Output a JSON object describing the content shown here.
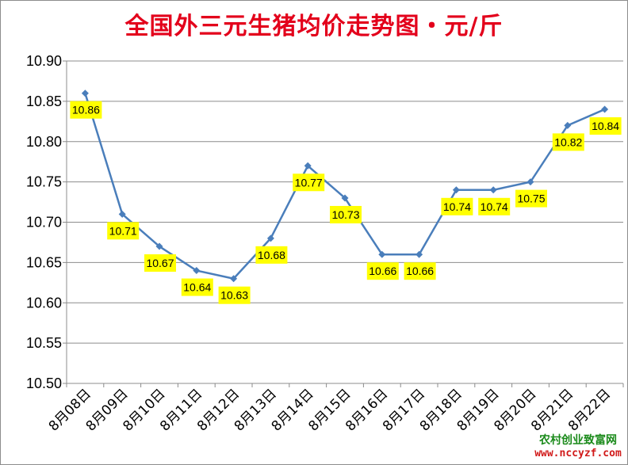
{
  "chart_data": {
    "type": "line",
    "title": "全国外三元生猪均价走势图・元/斤",
    "xlabel": "",
    "ylabel": "",
    "categories": [
      "8月08日",
      "8月09日",
      "8月10日",
      "8月11日",
      "8月12日",
      "8月13日",
      "8月14日",
      "8月15日",
      "8月16日",
      "8月17日",
      "8月18日",
      "8月19日",
      "8月20日",
      "8月21日",
      "8月22日"
    ],
    "series": [
      {
        "values": [
          10.86,
          10.71,
          10.67,
          10.64,
          10.63,
          10.68,
          10.77,
          10.73,
          10.66,
          10.66,
          10.74,
          10.74,
          10.75,
          10.82,
          10.84
        ]
      }
    ],
    "ylim": [
      10.5,
      10.9
    ],
    "yticks": [
      "10.50",
      "10.55",
      "10.60",
      "10.65",
      "10.70",
      "10.75",
      "10.80",
      "10.85",
      "10.90"
    ],
    "grid": true,
    "legend": "none",
    "data_labels": true,
    "line_color": "#4a7ebb",
    "label_bg_color": "#ffff00",
    "title_color": "#e3001b"
  },
  "watermark": {
    "line1": "农村创业致富网",
    "line2": "www.nccyzf.com"
  }
}
